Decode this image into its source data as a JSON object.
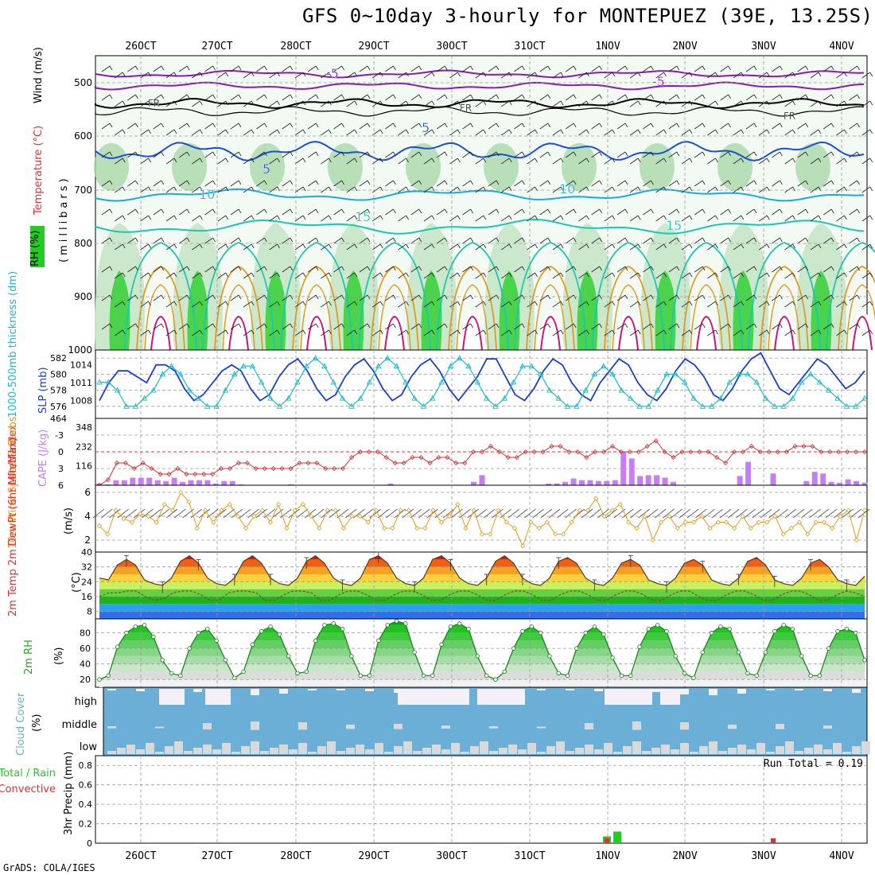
{
  "page": {
    "title": "GFS 0~10day 3-hourly for MONTEPUEZ (39E, 13.25S)",
    "credit": "GrADS: COLA/IGES",
    "run_total": "Run Total = 0.19"
  },
  "time_axis": {
    "labels": [
      "26OCT",
      "27OCT",
      "28OCT",
      "29OCT",
      "30OCT",
      "31OCT",
      "1NOV",
      "2NOV",
      "3NOV",
      "4NOV"
    ]
  },
  "colors": {
    "rh_green": "#22cc22",
    "temp_contour_blue": "#1a4fd6",
    "temp_contour_cyan": "#1aaae0",
    "temp_contour_teal": "#18c8b0",
    "temp_contour_orange": "#e09a20",
    "temp_contour_magenta": "#d0107a",
    "temp_contour_purple": "#8a1ab0",
    "slp_line": "#1a3fcf",
    "thickness_line": "#20b8c8",
    "cape_bar": "#c77ef5",
    "lifted_index": "#d03030",
    "wind_speed": "#e8981a",
    "cloud_bg": "#6baed6",
    "cloud_fill": "#d9d9d9",
    "precip_total": "#22cc22",
    "precip_conv": "#e03030"
  },
  "panels": {
    "upper_air": {
      "ylabel_parts": [
        "RH (%)",
        "Temperature (°C)",
        "Wind (m/s)"
      ],
      "yunit": "(millibars)",
      "y_ticks": [
        "500",
        "600",
        "700",
        "800",
        "900",
        "1000"
      ],
      "contour_labels": [
        "-5",
        "FR",
        "5",
        "10",
        "15"
      ]
    },
    "slp": {
      "ylabel_left": "1000-500mb thickness (dm)",
      "ylabel_right": "SLP (mb)",
      "left_ticks": [
        "582",
        "580",
        "578",
        "576",
        "464"
      ],
      "right_ticks": [
        "1014",
        "1011",
        "1008"
      ]
    },
    "cape": {
      "ylabel_left": "Lifted Index",
      "ylabel_right": "CAPE (J/kg)",
      "left_ticks": [
        "-3",
        "0",
        "3",
        "6"
      ],
      "right_ticks": [
        "348",
        "232",
        "116"
      ]
    },
    "wind10": {
      "ylabel": "10m Wind Speed & Barbs",
      "ylabel_right": "(m/s)",
      "ticks": [
        "6",
        "4",
        "2"
      ]
    },
    "temp2m": {
      "ylabel": "2m Temp 2m DewPt (6hr Min/Max)",
      "yunit": "(°C)",
      "ticks": [
        "40",
        "32",
        "24",
        "16",
        "8"
      ]
    },
    "rh2m": {
      "ylabel": "2m RH",
      "yunit": "(%)",
      "ticks": [
        "80",
        "60",
        "40",
        "20"
      ]
    },
    "cloud": {
      "ylabel": "Cloud Cover",
      "yunit": "(%)",
      "levels": [
        "high",
        "middle",
        "low"
      ]
    },
    "precip": {
      "ylabel_a": "Total / Rain",
      "ylabel_b": "Convective",
      "ylabel_c": "3hr Precip (mm)",
      "ticks": [
        "0.8",
        "0.6",
        "0.4",
        "0.2",
        "0"
      ]
    }
  },
  "chart_data": [
    {
      "type": "line",
      "panel": "slp",
      "series": [
        {
          "name": "SLP (mb)",
          "values": [
            1008,
            1011,
            1013,
            1013,
            1012,
            1011,
            1014,
            1014,
            1013,
            1010,
            1008,
            1009,
            1011,
            1013,
            1014,
            1013,
            1010,
            1008,
            1009,
            1012,
            1014,
            1015,
            1013,
            1010,
            1008,
            1009,
            1012,
            1014,
            1015,
            1013,
            1010,
            1008,
            1009,
            1012,
            1014,
            1015,
            1013,
            1010,
            1008,
            1010,
            1012,
            1015,
            1015,
            1012,
            1009,
            1008,
            1010,
            1013,
            1015,
            1014,
            1011,
            1009,
            1008,
            1011,
            1013,
            1015,
            1014,
            1011,
            1009,
            1008,
            1010,
            1013,
            1015,
            1014,
            1012,
            1009,
            1008,
            1010,
            1013,
            1015,
            1016,
            1013,
            1010,
            1009,
            1011,
            1013,
            1015,
            1014,
            1012,
            1010,
            1011,
            1013
          ]
        },
        {
          "name": "1000-500mb thickness (dm)",
          "values": [
            579,
            579,
            578,
            576,
            576,
            577,
            578,
            580,
            581,
            580,
            578,
            577,
            576,
            576,
            578,
            580,
            581,
            581,
            579,
            577,
            576,
            577,
            579,
            581,
            582,
            581,
            579,
            577,
            576,
            577,
            579,
            581,
            582,
            581,
            579,
            577,
            576,
            577,
            579,
            581,
            582,
            581,
            579,
            577,
            576,
            577,
            579,
            581,
            581,
            580,
            578,
            577,
            576,
            576,
            578,
            580,
            581,
            580,
            578,
            577,
            576,
            576,
            578,
            580,
            580,
            579,
            577,
            576,
            576,
            577,
            579,
            580,
            580,
            579,
            577,
            576,
            576,
            577,
            579,
            580,
            579,
            578,
            577,
            576,
            576,
            577
          ]
        }
      ]
    },
    {
      "type": "bar",
      "panel": "cape",
      "series": [
        {
          "name": "CAPE (J/kg)",
          "values": [
            10,
            5,
            30,
            30,
            45,
            45,
            45,
            30,
            25,
            45,
            20,
            30,
            30,
            30,
            10,
            25,
            25,
            5,
            0,
            0,
            0,
            0,
            0,
            5,
            0,
            0,
            0,
            0,
            0,
            0,
            0,
            0,
            0,
            0,
            0,
            10,
            0,
            0,
            0,
            0,
            0,
            0,
            0,
            0,
            0,
            20,
            60,
            0,
            0,
            0,
            0,
            0,
            0,
            0,
            10,
            10,
            20,
            40,
            30,
            30,
            25,
            25,
            30,
            200,
            160,
            55,
            60,
            60,
            45,
            20,
            0,
            0,
            0,
            0,
            0,
            0,
            0,
            55,
            140,
            0,
            0,
            70,
            0,
            0,
            0,
            25,
            80,
            70,
            20,
            15,
            35,
            25,
            15
          ]
        },
        {
          "name": "Lifted Index",
          "values": [
            6,
            5,
            2,
            2,
            3,
            2,
            3,
            4,
            4,
            3,
            4,
            4,
            4,
            4,
            3,
            3,
            2,
            2,
            3,
            3,
            3,
            3,
            3,
            2,
            2,
            2,
            3,
            3,
            3,
            1,
            0,
            0,
            0,
            1,
            2,
            2,
            1,
            1,
            2,
            1,
            1,
            2,
            2,
            0,
            0,
            -1,
            0,
            1,
            1,
            0,
            0,
            0,
            -1,
            -1,
            0,
            0,
            1,
            0,
            0,
            -1,
            0,
            0,
            0,
            -1,
            -2,
            0,
            1,
            0,
            0,
            0,
            0,
            1,
            2,
            0,
            0,
            -1,
            0,
            0,
            0,
            0,
            -1,
            -1,
            -1,
            0,
            0,
            0,
            0,
            0,
            0
          ]
        }
      ]
    },
    {
      "type": "line",
      "panel": "wind10",
      "series": [
        {
          "name": "10m Wind Speed (m/s)",
          "values": [
            3.2,
            2.5,
            4.5,
            3.8,
            3.5,
            4.2,
            4.0,
            3.5,
            5.0,
            4.5,
            6.0,
            5.2,
            3.0,
            4.5,
            3.5,
            4.5,
            5.0,
            4.0,
            3.0,
            4.0,
            4.5,
            3.5,
            5.0,
            3.0,
            4.5,
            5.0,
            4.0,
            3.0,
            4.5,
            4.5,
            3.0,
            4.0,
            4.0,
            3.5,
            4.5,
            3.0,
            3.0,
            4.5,
            4.5,
            3.0,
            3.0,
            4.5,
            3.5,
            4.0,
            5.0,
            3.0,
            4.5,
            2.5,
            2.5,
            4.5,
            3.5,
            3.0,
            1.5,
            3.5,
            3.0,
            3.5,
            2.5,
            2.5,
            3.5,
            4.5,
            4.5,
            5.5,
            4.0,
            4.5,
            5.0,
            3.5,
            3.0,
            4.0,
            2.0,
            3.5,
            4.0,
            3.0,
            3.5,
            3.5,
            4.0,
            3.0,
            3.5,
            3.5,
            3.0,
            4.0,
            3.0,
            3.5,
            3.5,
            4.0,
            2.5,
            3.0,
            3.5,
            2.5,
            3.5,
            3.5,
            3.0,
            4.0,
            4.5,
            2.0,
            4.5
          ]
        }
      ]
    },
    {
      "type": "area",
      "panel": "temp2m",
      "series": [
        {
          "name": "2m Temp (°C)",
          "values": [
            26,
            25,
            33,
            36,
            33,
            25,
            23,
            22,
            26,
            35,
            38,
            34,
            26,
            23,
            22,
            26,
            35,
            38,
            34,
            26,
            23,
            22,
            26,
            35,
            38,
            34,
            26,
            23,
            22,
            26,
            36,
            38,
            34,
            26,
            23,
            22,
            26,
            36,
            38,
            34,
            26,
            23,
            22,
            26,
            35,
            38,
            34,
            26,
            23,
            22,
            26,
            35,
            37,
            34,
            26,
            23,
            22,
            26,
            34,
            36,
            33,
            25,
            23,
            22,
            26,
            34,
            36,
            33,
            25,
            23,
            22,
            26,
            35,
            37,
            33,
            25,
            23,
            22,
            26,
            34,
            36,
            32,
            25,
            23,
            22,
            27
          ]
        },
        {
          "name": "2m DewPt (°C)",
          "values": [
            16,
            18,
            18,
            19,
            19,
            16,
            14,
            15,
            18,
            19,
            19,
            17,
            14,
            14,
            18,
            19,
            19,
            18,
            14,
            14,
            17,
            19,
            19,
            18,
            14,
            14,
            17,
            19,
            19,
            17,
            14,
            14,
            17,
            19,
            19,
            17,
            14,
            14,
            17,
            19,
            19,
            17,
            14,
            14,
            17,
            19,
            19,
            17,
            14,
            14,
            17,
            19,
            19,
            17,
            14,
            14,
            17,
            19,
            19,
            17,
            14,
            14,
            17,
            19,
            19,
            16,
            14,
            14,
            17,
            19,
            19,
            17,
            14,
            14,
            17,
            19,
            19,
            17,
            14,
            14,
            17,
            19,
            18,
            16
          ]
        }
      ]
    },
    {
      "type": "area",
      "panel": "rh2m",
      "series": [
        {
          "name": "2m RH (%)",
          "values": [
            20,
            25,
            62,
            80,
            88,
            90,
            75,
            45,
            28,
            25,
            60,
            80,
            85,
            70,
            45,
            22,
            30,
            65,
            82,
            88,
            78,
            50,
            28,
            30,
            70,
            90,
            92,
            85,
            50,
            25,
            25,
            70,
            90,
            95,
            92,
            55,
            25,
            25,
            65,
            88,
            92,
            85,
            50,
            25,
            20,
            30,
            60,
            82,
            88,
            80,
            50,
            28,
            25,
            60,
            80,
            88,
            78,
            48,
            25,
            25,
            62,
            85,
            90,
            82,
            50,
            28,
            22,
            55,
            80,
            88,
            85,
            55,
            28,
            25,
            55,
            82,
            90,
            85,
            50,
            25,
            25,
            60,
            82,
            85,
            80,
            45
          ]
        }
      ]
    },
    {
      "type": "bar",
      "panel": "precip",
      "series": [
        {
          "name": "Total / Rain (mm)",
          "values": [
            {
              "x": "1NOV",
              "value": 0.07
            },
            {
              "x": "1NOV+3h",
              "value": 0.12
            }
          ]
        },
        {
          "name": "Convective (mm)",
          "values": [
            {
              "x": "1NOV",
              "value": 0.05
            },
            {
              "x": "3NOV",
              "value": 0.05
            }
          ]
        }
      ],
      "ylim": [
        0,
        0.9
      ]
    }
  ]
}
